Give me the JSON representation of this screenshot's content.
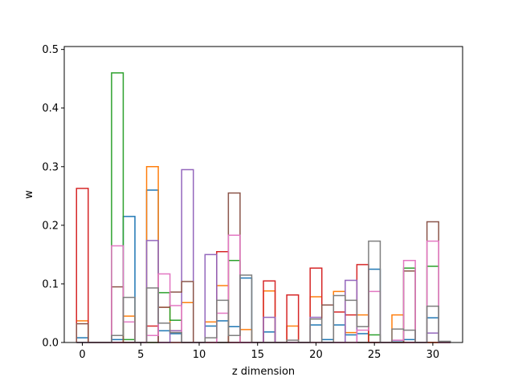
{
  "chart_data": {
    "type": "bar",
    "style": "step-histogram",
    "title": "",
    "xlabel": "z dimension",
    "ylabel": "w",
    "xlim": [
      -1.55,
      32.55
    ],
    "ylim": [
      0,
      0.505
    ],
    "xticks": [
      0,
      5,
      10,
      15,
      20,
      25,
      30
    ],
    "yticks": [
      0.0,
      0.1,
      0.2,
      0.3,
      0.4,
      0.5
    ],
    "ytick_labels": [
      "0.0",
      "0.1",
      "0.2",
      "0.3",
      "0.4",
      "0.5"
    ],
    "grid": false,
    "legend": "none",
    "x": [
      0,
      1,
      2,
      3,
      4,
      5,
      6,
      7,
      8,
      9,
      10,
      11,
      12,
      13,
      14,
      15,
      16,
      17,
      18,
      19,
      20,
      21,
      22,
      23,
      24,
      25,
      26,
      27,
      28,
      29,
      30,
      31
    ],
    "series": [
      {
        "color": "#1f77b4",
        "values": [
          0.008,
          0,
          0,
          0.005,
          0.215,
          0,
          0.26,
          0.02,
          0.015,
          0,
          0,
          0.028,
          0.037,
          0.027,
          0.11,
          0,
          0.018,
          0,
          0,
          0,
          0.03,
          0.005,
          0.03,
          0.013,
          0.015,
          0.125,
          0,
          0.003,
          0.005,
          0,
          0.042,
          0
        ]
      },
      {
        "color": "#ff7f0e",
        "values": [
          0.037,
          0,
          0,
          0,
          0.045,
          0,
          0.3,
          0.06,
          0.02,
          0.068,
          0,
          0.035,
          0.097,
          0,
          0.022,
          0,
          0.088,
          0,
          0.028,
          0,
          0.078,
          0,
          0.087,
          0.017,
          0.047,
          0,
          0,
          0.047,
          0,
          0,
          0,
          0
        ]
      },
      {
        "color": "#2ca02c",
        "values": [
          0,
          0,
          0,
          0.46,
          0.005,
          0,
          0,
          0.085,
          0.038,
          0,
          0,
          0,
          0,
          0.14,
          0,
          0,
          0,
          0,
          0,
          0,
          0,
          0,
          0,
          0,
          0,
          0.013,
          0,
          0,
          0.127,
          0,
          0.13,
          0
        ]
      },
      {
        "color": "#d62728",
        "values": [
          0.263,
          0,
          0,
          0,
          0,
          0,
          0.028,
          0,
          0,
          0,
          0,
          0,
          0.155,
          0,
          0,
          0,
          0.105,
          0,
          0.081,
          0,
          0.127,
          0,
          0.052,
          0.047,
          0.133,
          0,
          0,
          0,
          0,
          0,
          0,
          0
        ]
      },
      {
        "color": "#9467bd",
        "values": [
          0,
          0,
          0,
          0,
          0,
          0,
          0.174,
          0,
          0.02,
          0.295,
          0,
          0.15,
          0,
          0,
          0,
          0,
          0.043,
          0,
          0,
          0,
          0.043,
          0,
          0,
          0.106,
          0,
          0,
          0,
          0,
          0,
          0,
          0.016,
          0
        ]
      },
      {
        "color": "#8c564b",
        "values": [
          0.032,
          0,
          0,
          0.095,
          0,
          0,
          0,
          0.06,
          0.086,
          0.104,
          0,
          0,
          0,
          0.255,
          0,
          0,
          0,
          0,
          0,
          0,
          0,
          0.064,
          0,
          0,
          0,
          0,
          0,
          0,
          0.122,
          0,
          0.206,
          0
        ]
      },
      {
        "color": "#e377c2",
        "values": [
          0,
          0,
          0,
          0.165,
          0.035,
          0,
          0.012,
          0.117,
          0.063,
          0,
          0,
          0,
          0.05,
          0.183,
          0,
          0,
          0,
          0,
          0,
          0,
          0,
          0,
          0,
          0,
          0.021,
          0.087,
          0,
          0.004,
          0.14,
          0,
          0.173,
          0
        ]
      },
      {
        "color": "#7f7f7f",
        "values": [
          0,
          0,
          0,
          0.012,
          0.077,
          0,
          0.093,
          0.033,
          0.017,
          0,
          0,
          0.008,
          0.072,
          0.012,
          0.115,
          0,
          0,
          0,
          0.004,
          0,
          0.04,
          0,
          0.08,
          0.072,
          0.027,
          0.173,
          0,
          0.023,
          0.021,
          0,
          0.062,
          0.002
        ]
      }
    ]
  }
}
